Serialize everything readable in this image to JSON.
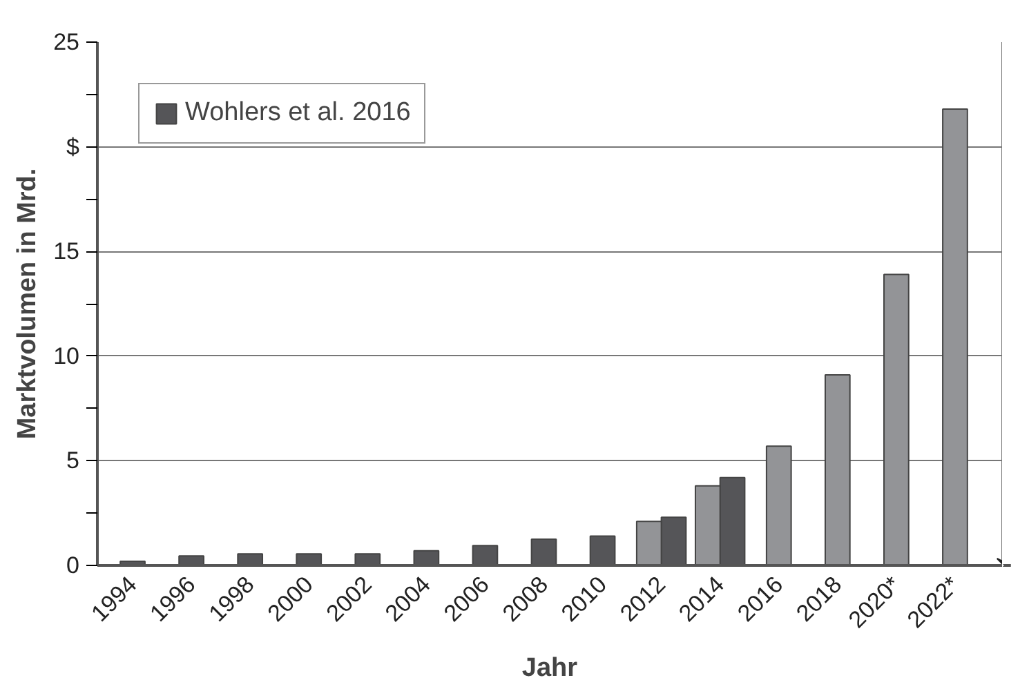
{
  "chart_data": {
    "type": "bar",
    "xlabel": "Jahr",
    "ylabel": "Marktvolumen in Mrd.",
    "categories": [
      "1994",
      "1996",
      "1998",
      "2000",
      "2002",
      "2004",
      "2006",
      "2008",
      "2010",
      "2012",
      "2014",
      "2016",
      "2018",
      "2020*",
      "2022*"
    ],
    "series": [
      {
        "name": "Wohlers et al. 2016",
        "color": "#555558",
        "values": [
          0.2,
          0.45,
          0.55,
          0.55,
          0.55,
          0.7,
          0.95,
          1.25,
          1.4,
          2.3,
          4.2,
          null,
          null,
          null,
          null
        ]
      },
      {
        "color": "#939497",
        "values": [
          null,
          null,
          null,
          null,
          null,
          null,
          null,
          null,
          null,
          2.1,
          3.8,
          5.7,
          9.1,
          13.9,
          21.8
        ]
      }
    ],
    "ylim": [
      0,
      25
    ],
    "yticks": [
      0,
      {
        "value": 2.5,
        "label": null
      },
      5,
      {
        "value": 7.5,
        "label": null
      },
      10,
      {
        "value": 12.5,
        "label": null
      },
      15,
      {
        "value": 17.5,
        "label": null
      },
      {
        "value": 20,
        "label": "$"
      },
      {
        "value": 22.5,
        "label": null
      },
      25
    ],
    "grid": "y",
    "legend": "top left"
  }
}
